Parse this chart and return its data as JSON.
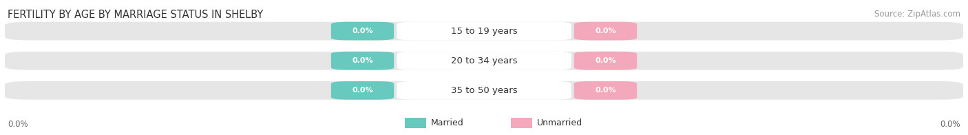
{
  "title": "FERTILITY BY AGE BY MARRIAGE STATUS IN SHELBY",
  "source": "Source: ZipAtlas.com",
  "categories": [
    "15 to 19 years",
    "20 to 34 years",
    "35 to 50 years"
  ],
  "married_values": [
    0.0,
    0.0,
    0.0
  ],
  "unmarried_values": [
    0.0,
    0.0,
    0.0
  ],
  "married_color": "#68c9bf",
  "unmarried_color": "#f4a8bc",
  "bar_bg_color": "#e6e6e6",
  "center_color": "#ffffff",
  "title_fontsize": 10.5,
  "source_fontsize": 8.5,
  "axis_label_fontsize": 8.5,
  "category_fontsize": 9.5,
  "value_fontsize": 8,
  "axis_label_left": "0.0%",
  "axis_label_right": "0.0%",
  "background_color": "#ffffff",
  "legend_married": "Married",
  "legend_unmarried": "Unmarried"
}
